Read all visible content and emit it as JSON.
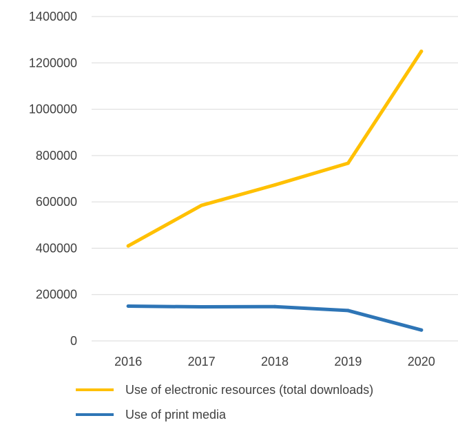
{
  "chart_data": {
    "type": "line",
    "categories": [
      "2016",
      "2017",
      "2018",
      "2019",
      "2020"
    ],
    "series": [
      {
        "name": "Use of electronic resources (total downloads)",
        "color": "#FFC000",
        "values": [
          410000,
          585000,
          673000,
          767000,
          1250000
        ]
      },
      {
        "name": "Use of print media",
        "color": "#2E75B6",
        "values": [
          150000,
          147000,
          148000,
          131000,
          47000
        ]
      }
    ],
    "ylim": [
      0,
      1400000
    ],
    "yticks": [
      "0",
      "200000",
      "400000",
      "600000",
      "800000",
      "1000000",
      "1200000",
      "1400000"
    ],
    "grid": true,
    "legend_position": "bottom"
  }
}
